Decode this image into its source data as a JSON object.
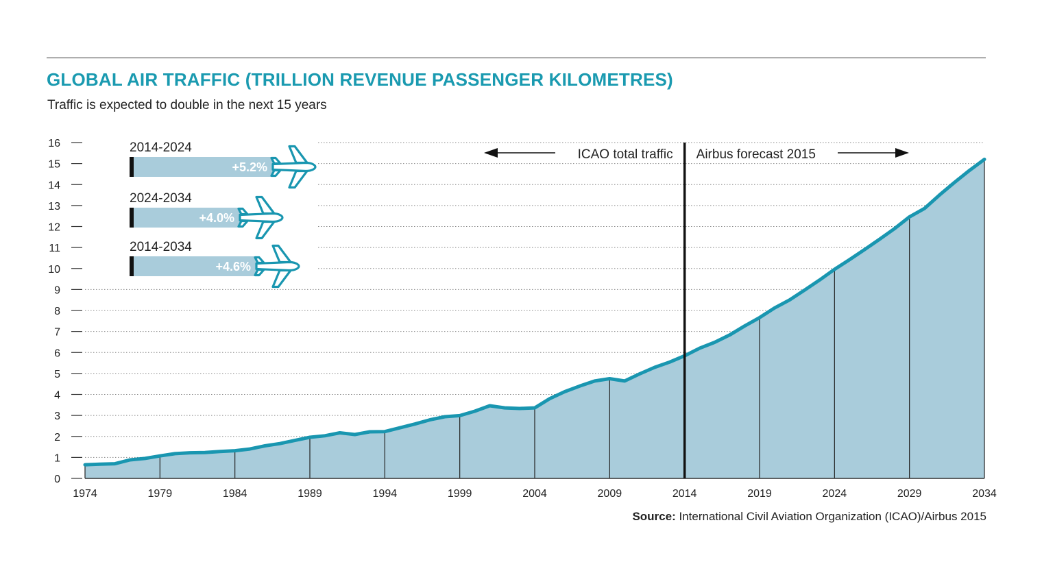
{
  "header": {
    "title": "GLOBAL AIR TRAFFIC (TRILLION REVENUE PASSENGER KILOMETRES)",
    "subtitle": "Traffic is expected to double in the next 15 years"
  },
  "source": {
    "label": "Source:",
    "text": "International Civil Aviation Organization (ICAO)/Airbus 2015"
  },
  "colors": {
    "accent": "#1a9ab0",
    "fill": "#a9ccdb",
    "line": "#1996b0",
    "bar": "#a9ccdb",
    "divider": "#111111"
  },
  "annotations": {
    "left_label": "ICAO total traffic",
    "right_label": "Airbus forecast 2015",
    "divider_year": 2014
  },
  "growth_bars": [
    {
      "period": "2014-2024",
      "rate": "+5.2%",
      "value": 5.2,
      "icon": "airplane-icon"
    },
    {
      "period": "2024-2034",
      "rate": "+4.0%",
      "value": 4.0,
      "icon": "airplane-icon"
    },
    {
      "period": "2014-2034",
      "rate": "+4.6%",
      "value": 4.6,
      "icon": "airplane-icon"
    }
  ],
  "chart_data": {
    "type": "area",
    "title": "GLOBAL AIR TRAFFIC (TRILLION REVENUE PASSENGER KILOMETRES)",
    "subtitle": "Traffic is expected to double in the next 15 years",
    "xlabel": "",
    "ylabel": "",
    "xlim": [
      1974,
      2034
    ],
    "ylim": [
      0,
      16
    ],
    "x_ticks": [
      1974,
      1979,
      1984,
      1989,
      1994,
      1999,
      2004,
      2009,
      2014,
      2019,
      2024,
      2029,
      2034
    ],
    "y_ticks": [
      0,
      1,
      2,
      3,
      4,
      5,
      6,
      7,
      8,
      9,
      10,
      11,
      12,
      13,
      14,
      15,
      16
    ],
    "grid": "horizontal dotted",
    "x": [
      1974,
      1975,
      1976,
      1977,
      1978,
      1979,
      1980,
      1981,
      1982,
      1983,
      1984,
      1985,
      1986,
      1987,
      1988,
      1989,
      1990,
      1991,
      1992,
      1993,
      1994,
      1995,
      1996,
      1997,
      1998,
      1999,
      2000,
      2001,
      2002,
      2003,
      2004,
      2005,
      2006,
      2007,
      2008,
      2009,
      2010,
      2011,
      2012,
      2013,
      2014,
      2015,
      2016,
      2017,
      2018,
      2019,
      2020,
      2021,
      2022,
      2023,
      2024,
      2025,
      2026,
      2027,
      2028,
      2029,
      2030,
      2031,
      2032,
      2033,
      2034
    ],
    "y": [
      0.65,
      0.68,
      0.7,
      0.88,
      0.95,
      1.07,
      1.18,
      1.22,
      1.23,
      1.28,
      1.32,
      1.4,
      1.55,
      1.66,
      1.81,
      1.96,
      2.03,
      2.17,
      2.09,
      2.22,
      2.23,
      2.41,
      2.59,
      2.79,
      2.94,
      2.99,
      3.2,
      3.46,
      3.36,
      3.33,
      3.36,
      3.8,
      4.13,
      4.4,
      4.64,
      4.75,
      4.64,
      4.98,
      5.29,
      5.54,
      5.84,
      6.2,
      6.48,
      6.83,
      7.26,
      7.66,
      8.12,
      8.5,
      8.97,
      9.45,
      9.96,
      10.42,
      10.9,
      11.39,
      11.9,
      12.46,
      12.86,
      13.5,
      14.1,
      14.67,
      15.2
    ]
  }
}
